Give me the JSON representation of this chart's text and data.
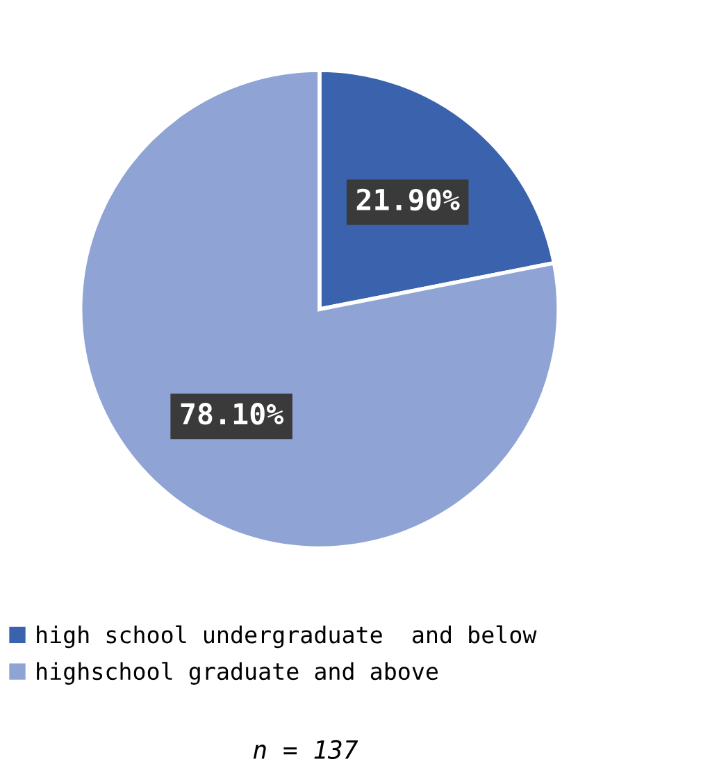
{
  "chart_data": {
    "type": "pie",
    "categories": [
      "high school undergraduate  and below",
      "highschool graduate and above"
    ],
    "values": [
      21.9,
      78.1
    ],
    "colors": [
      "#3a62ad",
      "#8fa3d4"
    ],
    "value_labels": [
      "21.90%",
      "78.10%"
    ],
    "legend": "bottom",
    "annotations": [
      "n = 137"
    ]
  }
}
